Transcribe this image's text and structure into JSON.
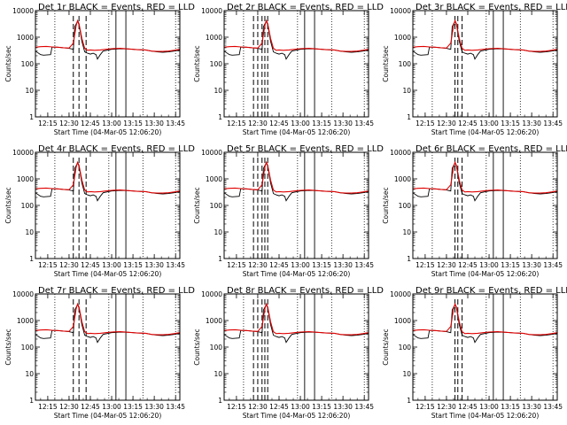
{
  "colors": {
    "events": "#000000",
    "lld": "#e00000",
    "background": "#ffffff",
    "frame": "#000000"
  },
  "chart_data": {
    "type": "line",
    "yscale": "log",
    "ylim": [
      1,
      10000
    ],
    "y_ticks": [
      1,
      10,
      100,
      1000,
      10000
    ],
    "y_tick_labels": [
      "1",
      "10",
      "100",
      "1000",
      "10000"
    ],
    "xlim": [
      "12:06:20",
      "13:48:00"
    ],
    "x_ticks": [
      "12:15",
      "12:30",
      "12:45",
      "13:00",
      "13:15",
      "13:30",
      "13:45"
    ],
    "ylabel": "Counts/sec",
    "xlabel": "Start Time (04-Mar-05 12:06:20)",
    "panels": [
      {
        "title": "Det 1r  BLACK = Events, RED = LLD",
        "attenuator_dash_x": [
          "12:33",
          "12:37",
          "12:42"
        ]
      },
      {
        "title": "Det 2r  BLACK = Events, RED = LLD",
        "attenuator_dash_x": [
          "12:27",
          "12:30",
          "12:33",
          "12:35",
          "12:37"
        ]
      },
      {
        "title": "Det 3r  BLACK = Events, RED = LLD",
        "attenuator_dash_x": [
          "12:36",
          "12:38",
          "12:41"
        ]
      },
      {
        "title": "Det 4r  BLACK = Events, RED = LLD",
        "attenuator_dash_x": [
          "12:33",
          "12:37",
          "12:42"
        ]
      },
      {
        "title": "Det 5r  BLACK = Events, RED = LLD",
        "attenuator_dash_x": [
          "12:27",
          "12:30",
          "12:33",
          "12:35",
          "12:37"
        ]
      },
      {
        "title": "Det 6r  BLACK = Events, RED = LLD",
        "attenuator_dash_x": [
          "12:36",
          "12:38",
          "12:41"
        ]
      },
      {
        "title": "Det 7r  BLACK = Events, RED = LLD",
        "attenuator_dash_x": [
          "12:33",
          "12:37",
          "12:42"
        ]
      },
      {
        "title": "Det 8r  BLACK = Events, RED = LLD",
        "attenuator_dash_x": [
          "12:27",
          "12:30",
          "12:33",
          "12:35",
          "12:37"
        ]
      },
      {
        "title": "Det 9r  BLACK = Events, RED = LLD",
        "attenuator_dash_x": [
          "12:36",
          "12:38",
          "12:41"
        ]
      }
    ],
    "dotted_lines_x": [
      "12:20",
      "12:58",
      "13:22",
      "13:45"
    ],
    "solid_lines_x": [
      "13:03",
      "13:10"
    ],
    "series": [
      {
        "name": "Events",
        "x": [
          "12:06:20",
          "12:10",
          "12:12",
          "12:17",
          "12:18",
          "12:22",
          "12:26",
          "12:30",
          "12:33",
          "12:34",
          "12:36",
          "12:37",
          "12:39",
          "12:41",
          "12:43",
          "12:45",
          "12:47",
          "12:49",
          "12:50",
          "12:52",
          "12:54",
          "13:00",
          "13:06",
          "13:12",
          "13:18",
          "13:24",
          "13:28",
          "13:32",
          "13:36",
          "13:40",
          "13:44",
          "13:48"
        ],
        "values": [
          300,
          220,
          210,
          220,
          420,
          420,
          400,
          380,
          350,
          2500,
          4000,
          3000,
          700,
          280,
          250,
          230,
          250,
          220,
          150,
          220,
          300,
          350,
          370,
          360,
          340,
          330,
          300,
          280,
          270,
          280,
          300,
          330
        ]
      },
      {
        "name": "LLD",
        "x": [
          "12:06:20",
          "12:10",
          "12:14",
          "12:18",
          "12:22",
          "12:26",
          "12:30",
          "12:33",
          "12:35",
          "12:36",
          "12:37",
          "12:39",
          "12:41",
          "12:43",
          "12:45",
          "12:48",
          "12:52",
          "12:56",
          "13:00",
          "13:06",
          "13:12",
          "13:18",
          "13:24",
          "13:28",
          "13:32",
          "13:36",
          "13:40",
          "13:44",
          "13:48"
        ],
        "values": [
          420,
          440,
          450,
          430,
          420,
          400,
          390,
          600,
          2800,
          4200,
          3200,
          900,
          380,
          320,
          330,
          320,
          330,
          350,
          370,
          380,
          360,
          340,
          330,
          300,
          290,
          290,
          300,
          320,
          350
        ]
      }
    ],
    "grid": false,
    "legend": "none"
  }
}
